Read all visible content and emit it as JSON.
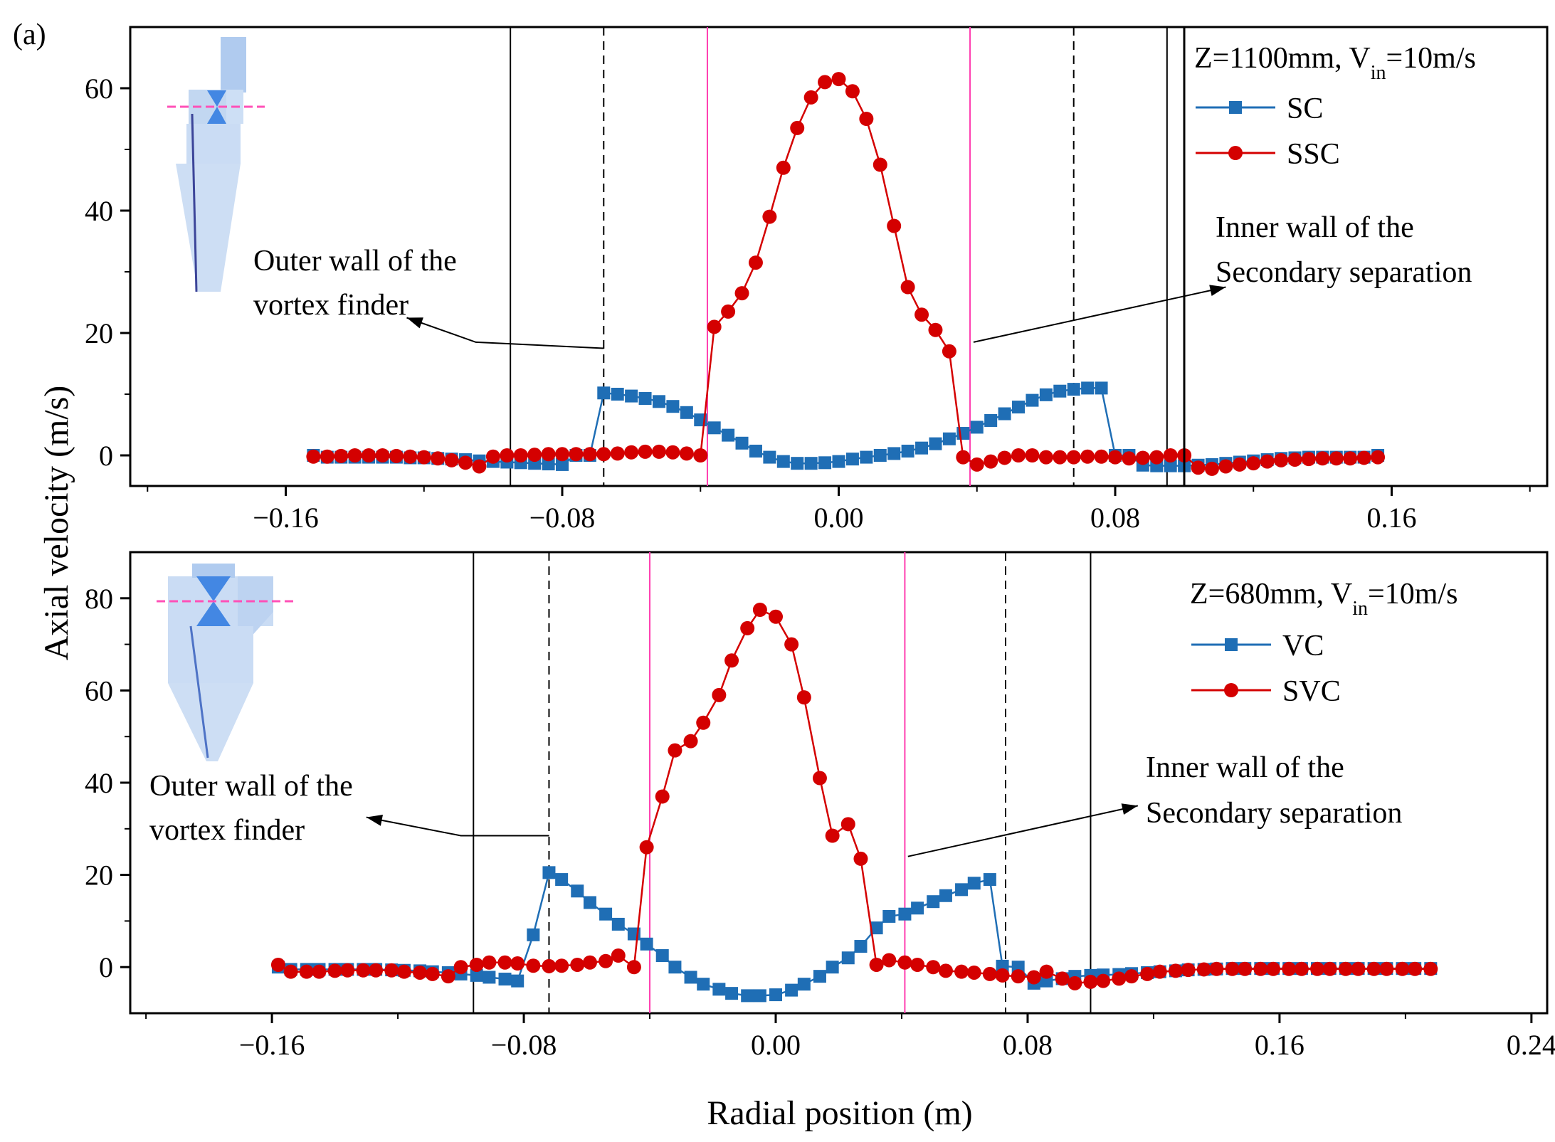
{
  "figure": {
    "panel_label": "(a)",
    "y_axis_label": "Axial velocity (m/s)",
    "x_axis_label": "Radial position (m)"
  },
  "colors": {
    "series_blue": "#1f6eb5",
    "series_red": "#d40000",
    "boundary_pink": "#ff3eb0",
    "axes": "#000000"
  },
  "chart_data": [
    {
      "type": "line",
      "legend_title": "Z=1100mm, V_in=10m/s",
      "legend_title_parts": {
        "a": "Z=1100mm, V",
        "sub": "in",
        "b": "=10m/s"
      },
      "legend_placement": "top-right",
      "xlim": [
        -0.205,
        0.205
      ],
      "ylim": [
        -5,
        70
      ],
      "xticks": [
        -0.16,
        -0.08,
        0.0,
        0.08,
        0.16
      ],
      "xtick_labels": [
        "−0.16",
        "−0.08",
        "0.00",
        "0.08",
        "0.16"
      ],
      "yticks": [
        0,
        20,
        40,
        60
      ],
      "ytick_labels": [
        "0",
        "20",
        "40",
        "60"
      ],
      "grid": false,
      "vlines": [
        {
          "x": -0.095,
          "style": "solid-black"
        },
        {
          "x": 0.095,
          "style": "solid-black"
        },
        {
          "x": -0.068,
          "style": "dashed-black"
        },
        {
          "x": 0.068,
          "style": "dashed-black"
        },
        {
          "x": -0.038,
          "style": "solid-pink"
        },
        {
          "x": 0.038,
          "style": "solid-pink"
        }
      ],
      "annotations": [
        {
          "lines": [
            "Outer wall of the",
            "vortex finder"
          ],
          "arrow": [
            [
              -0.068,
              17.5
            ],
            [
              -0.105,
              18.5
            ],
            [
              -0.125,
              22.5
            ]
          ]
        },
        {
          "lines": [
            "Inner wall of the",
            "Secondary separation"
          ],
          "arrow": [
            [
              0.039,
              18.5
            ],
            [
              0.112,
              27.5
            ]
          ]
        }
      ],
      "series": [
        {
          "name": "SC",
          "marker": "square",
          "color": "#1f6eb5",
          "x": [
            -0.152,
            -0.148,
            -0.144,
            -0.14,
            -0.136,
            -0.132,
            -0.128,
            -0.124,
            -0.12,
            -0.116,
            -0.112,
            -0.108,
            -0.104,
            -0.1,
            -0.096,
            -0.092,
            -0.088,
            -0.084,
            -0.08,
            -0.076,
            -0.072,
            -0.068,
            -0.064,
            -0.06,
            -0.056,
            -0.052,
            -0.048,
            -0.044,
            -0.04,
            -0.036,
            -0.032,
            -0.028,
            -0.024,
            -0.02,
            -0.016,
            -0.012,
            -0.008,
            -0.004,
            0.0,
            0.004,
            0.008,
            0.012,
            0.016,
            0.02,
            0.024,
            0.028,
            0.032,
            0.036,
            0.04,
            0.044,
            0.048,
            0.052,
            0.056,
            0.06,
            0.064,
            0.068,
            0.072,
            0.076,
            0.08,
            0.084,
            0.088,
            0.092,
            0.096,
            0.1,
            0.104,
            0.108,
            0.112,
            0.116,
            0.12,
            0.124,
            0.128,
            0.132,
            0.136,
            0.14,
            0.144,
            0.148,
            0.152,
            0.156
          ],
          "y": [
            0.0,
            -0.3,
            -0.3,
            -0.3,
            -0.3,
            -0.3,
            -0.3,
            -0.4,
            -0.4,
            -0.5,
            -0.6,
            -0.7,
            -0.9,
            -1.0,
            -1.1,
            -1.2,
            -1.3,
            -1.4,
            -1.5,
            0.0,
            0.0,
            10.2,
            10.0,
            9.7,
            9.3,
            8.8,
            8.0,
            7.0,
            5.8,
            4.5,
            3.3,
            2.0,
            0.7,
            -0.3,
            -1.0,
            -1.3,
            -1.3,
            -1.2,
            -1.0,
            -0.6,
            -0.3,
            0.0,
            0.3,
            0.7,
            1.2,
            1.9,
            2.7,
            3.6,
            4.6,
            5.7,
            6.8,
            7.9,
            9.0,
            9.9,
            10.5,
            10.8,
            11.0,
            11.0,
            0.0,
            0.0,
            -1.6,
            -1.7,
            -1.7,
            -1.7,
            -1.6,
            -1.5,
            -1.3,
            -1.1,
            -0.9,
            -0.7,
            -0.5,
            -0.4,
            -0.3,
            -0.3,
            -0.3,
            -0.3,
            -0.3,
            0.0
          ]
        },
        {
          "name": "SSC",
          "marker": "circle",
          "color": "#d40000",
          "x": [
            -0.152,
            -0.148,
            -0.144,
            -0.14,
            -0.136,
            -0.132,
            -0.128,
            -0.124,
            -0.12,
            -0.116,
            -0.112,
            -0.108,
            -0.104,
            -0.1,
            -0.096,
            -0.092,
            -0.088,
            -0.084,
            -0.08,
            -0.076,
            -0.072,
            -0.068,
            -0.064,
            -0.06,
            -0.056,
            -0.052,
            -0.048,
            -0.044,
            -0.04,
            -0.036,
            -0.032,
            -0.028,
            -0.024,
            -0.02,
            -0.016,
            -0.012,
            -0.008,
            -0.004,
            0.0,
            0.004,
            0.008,
            0.012,
            0.016,
            0.02,
            0.024,
            0.028,
            0.032,
            0.036,
            0.04,
            0.044,
            0.048,
            0.052,
            0.056,
            0.06,
            0.064,
            0.068,
            0.072,
            0.076,
            0.08,
            0.084,
            0.088,
            0.092,
            0.096,
            0.1,
            0.104,
            0.108,
            0.112,
            0.116,
            0.12,
            0.124,
            0.128,
            0.132,
            0.136,
            0.14,
            0.144,
            0.148,
            0.152,
            0.156
          ],
          "y": [
            -0.2,
            -0.2,
            -0.1,
            0.0,
            0.0,
            0.0,
            -0.1,
            -0.2,
            -0.3,
            -0.5,
            -0.8,
            -1.2,
            -1.8,
            -0.2,
            0.0,
            0.0,
            0.1,
            0.2,
            0.2,
            0.2,
            0.2,
            0.2,
            0.3,
            0.5,
            0.6,
            0.6,
            0.5,
            0.3,
            0.0,
            21.0,
            23.5,
            26.5,
            31.5,
            39.0,
            47.0,
            53.5,
            58.5,
            61.0,
            61.5,
            59.5,
            55.0,
            47.5,
            37.5,
            27.5,
            23.0,
            20.5,
            17.0,
            -0.3,
            -1.5,
            -1.0,
            -0.4,
            0.0,
            0.0,
            -0.3,
            -0.3,
            -0.3,
            -0.2,
            -0.2,
            -0.3,
            -0.5,
            -0.4,
            -0.3,
            0.0,
            0.0,
            -2.0,
            -2.2,
            -1.8,
            -1.5,
            -1.3,
            -1.0,
            -0.8,
            -0.7,
            -0.6,
            -0.5,
            -0.5,
            -0.5,
            -0.4,
            -0.3
          ]
        }
      ]
    },
    {
      "type": "line",
      "legend_title": "Z=680mm, V_in=10m/s",
      "legend_title_parts": {
        "a": "Z=680mm, V",
        "sub": "in",
        "b": "=10m/s"
      },
      "legend_placement": "top-right",
      "xlim": [
        -0.205,
        0.245
      ],
      "ylim": [
        -10,
        90
      ],
      "xticks": [
        -0.16,
        -0.08,
        0.0,
        0.08,
        0.16,
        0.24
      ],
      "xtick_labels": [
        "−0.16",
        "−0.08",
        "0.00",
        "0.08",
        "0.16",
        "0.24"
      ],
      "yticks": [
        0,
        20,
        40,
        60,
        80
      ],
      "ytick_labels": [
        "0",
        "20",
        "40",
        "60",
        "80"
      ],
      "grid": false,
      "vlines": [
        {
          "x": -0.096,
          "style": "solid-black"
        },
        {
          "x": 0.1,
          "style": "solid-black"
        },
        {
          "x": -0.072,
          "style": "dashed-black"
        },
        {
          "x": 0.073,
          "style": "dashed-black"
        },
        {
          "x": -0.04,
          "style": "solid-pink"
        },
        {
          "x": 0.041,
          "style": "solid-pink"
        }
      ],
      "annotations": [
        {
          "lines": [
            "Outer wall of the",
            "vortex finder"
          ],
          "arrow": [
            [
              -0.072,
              28.5
            ],
            [
              -0.1,
              28.5
            ],
            [
              -0.13,
              32.5
            ]
          ]
        },
        {
          "lines": [
            "Inner wall of the",
            "Secondary separation"
          ],
          "arrow": [
            [
              0.042,
              24
            ],
            [
              0.115,
              35
            ]
          ]
        }
      ],
      "series": [
        {
          "name": "VC",
          "marker": "square",
          "color": "#1f6eb5",
          "x": [
            -0.158,
            -0.154,
            -0.149,
            -0.145,
            -0.14,
            -0.136,
            -0.131,
            -0.127,
            -0.122,
            -0.118,
            -0.113,
            -0.109,
            -0.104,
            -0.1,
            -0.095,
            -0.091,
            -0.086,
            -0.082,
            -0.077,
            -0.072,
            -0.068,
            -0.063,
            -0.059,
            -0.054,
            -0.05,
            -0.045,
            -0.041,
            -0.036,
            -0.032,
            -0.027,
            -0.023,
            -0.018,
            -0.014,
            -0.009,
            -0.005,
            0.0,
            0.005,
            0.009,
            0.014,
            0.018,
            0.023,
            0.027,
            0.032,
            0.036,
            0.041,
            0.045,
            0.05,
            0.054,
            0.059,
            0.063,
            0.068,
            0.072,
            0.077,
            0.082,
            0.086,
            0.091,
            0.095,
            0.1,
            0.104,
            0.109,
            0.113,
            0.118,
            0.122,
            0.127,
            0.131,
            0.136,
            0.14,
            0.145,
            0.149,
            0.154,
            0.158,
            0.163,
            0.167,
            0.172,
            0.176,
            0.181,
            0.185,
            0.19,
            0.194,
            0.199,
            0.203,
            0.208
          ],
          "y": [
            0.0,
            -0.5,
            -0.5,
            -0.5,
            -0.5,
            -0.5,
            -0.5,
            -0.5,
            -0.6,
            -0.7,
            -0.8,
            -1.0,
            -1.2,
            -1.5,
            -1.8,
            -2.2,
            -2.6,
            -3.0,
            7.0,
            20.5,
            19.0,
            16.5,
            14.0,
            11.5,
            9.3,
            7.2,
            5.0,
            2.5,
            0.0,
            -2.2,
            -3.7,
            -4.8,
            -5.7,
            -6.2,
            -6.2,
            -6.0,
            -5.0,
            -3.7,
            -2.0,
            0.0,
            2.0,
            4.5,
            8.5,
            11.0,
            11.5,
            12.8,
            14.2,
            15.5,
            16.8,
            18.2,
            19.0,
            0.2,
            0.0,
            -3.5,
            -3.0,
            -2.5,
            -2.0,
            -1.8,
            -1.7,
            -1.6,
            -1.4,
            -1.2,
            -1.0,
            -0.8,
            -0.6,
            -0.5,
            -0.4,
            -0.3,
            -0.3,
            -0.3,
            -0.3,
            -0.3,
            -0.3,
            -0.3,
            -0.3,
            -0.3,
            -0.3,
            -0.3,
            -0.3,
            -0.3,
            -0.3,
            -0.3
          ]
        },
        {
          "name": "SVC",
          "marker": "circle",
          "color": "#d40000",
          "x": [
            -0.158,
            -0.154,
            -0.149,
            -0.145,
            -0.14,
            -0.136,
            -0.131,
            -0.127,
            -0.122,
            -0.118,
            -0.113,
            -0.109,
            -0.104,
            -0.1,
            -0.095,
            -0.091,
            -0.086,
            -0.082,
            -0.077,
            -0.072,
            -0.068,
            -0.063,
            -0.059,
            -0.054,
            -0.05,
            -0.045,
            -0.041,
            -0.036,
            -0.032,
            -0.027,
            -0.023,
            -0.018,
            -0.014,
            -0.009,
            -0.005,
            0.0,
            0.005,
            0.009,
            0.014,
            0.018,
            0.023,
            0.027,
            0.032,
            0.036,
            0.041,
            0.045,
            0.05,
            0.054,
            0.059,
            0.063,
            0.068,
            0.072,
            0.077,
            0.082,
            0.086,
            0.091,
            0.095,
            0.1,
            0.104,
            0.109,
            0.113,
            0.118,
            0.122,
            0.127,
            0.131,
            0.136,
            0.14,
            0.145,
            0.149,
            0.154,
            0.158,
            0.163,
            0.167,
            0.172,
            0.176,
            0.181,
            0.185,
            0.19,
            0.194,
            0.199,
            0.203,
            0.208
          ],
          "y": [
            0.5,
            -1.0,
            -1.0,
            -1.0,
            -0.8,
            -0.7,
            -0.7,
            -0.7,
            -0.7,
            -1.0,
            -1.2,
            -1.5,
            -2.0,
            0.0,
            0.5,
            1.0,
            1.0,
            0.8,
            0.3,
            0.2,
            0.3,
            0.5,
            1.0,
            1.3,
            2.5,
            0.0,
            26.0,
            37.0,
            47.0,
            49.0,
            53.0,
            59.0,
            66.5,
            73.5,
            77.5,
            76.0,
            70.0,
            58.5,
            41.0,
            28.5,
            31.0,
            23.5,
            0.5,
            1.5,
            1.0,
            0.5,
            0.0,
            -0.8,
            -1.0,
            -1.2,
            -1.5,
            -1.8,
            -2.0,
            -2.2,
            -1.0,
            -2.5,
            -3.5,
            -3.2,
            -3.0,
            -2.5,
            -2.0,
            -1.5,
            -1.0,
            -0.8,
            -0.6,
            -0.5,
            -0.4,
            -0.4,
            -0.4,
            -0.4,
            -0.4,
            -0.4,
            -0.4,
            -0.4,
            -0.4,
            -0.4,
            -0.4,
            -0.4,
            -0.4,
            -0.4,
            -0.4,
            -0.4
          ]
        }
      ]
    }
  ]
}
